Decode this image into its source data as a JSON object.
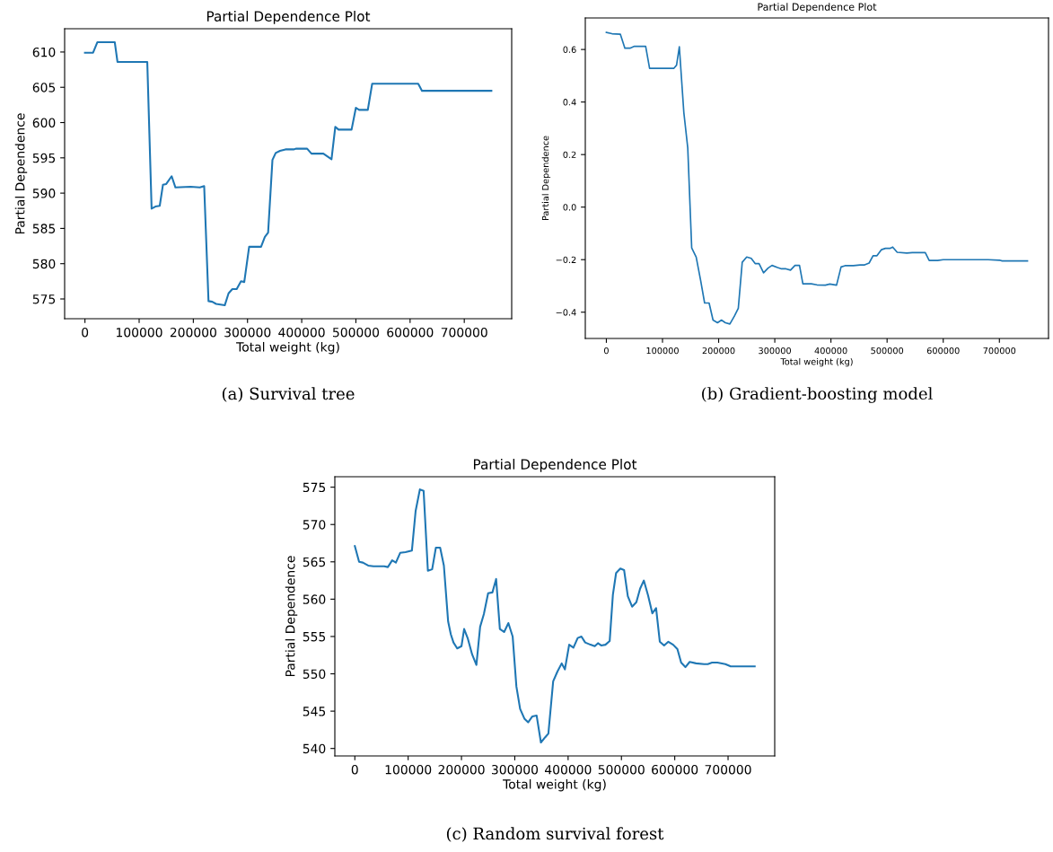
{
  "chart_data": [
    {
      "type": "line",
      "title": "Partial Dependence Plot",
      "xlabel": "Total weight (kg)",
      "ylabel": "Partial Dependence",
      "annotations": [
        "(a) Survival tree"
      ],
      "xlim": [
        -37500,
        787500
      ],
      "ylim": [
        572.2,
        613.3
      ],
      "xticks": [
        0,
        100000,
        200000,
        300000,
        400000,
        500000,
        600000,
        700000
      ],
      "yticks": [
        575,
        580,
        585,
        590,
        595,
        600,
        605,
        610
      ],
      "grid": false,
      "legend": false,
      "series": [
        {
          "color": "#1f77b4",
          "x": [
            0,
            15000,
            23000,
            55000,
            60000,
            115000,
            123000,
            130000,
            138000,
            144000,
            150000,
            160000,
            167000,
            195000,
            212000,
            220000,
            228000,
            235000,
            242000,
            258000,
            265000,
            272000,
            280000,
            288000,
            294000,
            303000,
            325000,
            332000,
            338000,
            346000,
            352000,
            360000,
            370000,
            385000,
            390000,
            410000,
            418000,
            440000,
            455000,
            462000,
            468000,
            492000,
            500000,
            506000,
            522000,
            530000,
            615000,
            622000,
            750000
          ],
          "values": [
            609.9,
            609.9,
            611.4,
            611.4,
            608.6,
            608.6,
            587.8,
            588.1,
            588.2,
            591.2,
            591.3,
            592.4,
            590.8,
            590.9,
            590.8,
            591.0,
            574.7,
            574.6,
            574.3,
            574.1,
            575.8,
            576.4,
            576.4,
            577.5,
            577.4,
            582.4,
            582.4,
            583.8,
            584.4,
            594.7,
            595.7,
            596.0,
            596.2,
            596.2,
            596.3,
            596.3,
            595.6,
            595.6,
            594.8,
            599.4,
            599.0,
            599.0,
            602.1,
            601.8,
            601.8,
            605.5,
            605.5,
            604.5,
            604.5
          ]
        }
      ]
    },
    {
      "type": "line",
      "title": "Partial Dependence Plot",
      "xlabel": "Total weight (kg)",
      "ylabel": "Partial Dependence",
      "annotations": [
        "(b) Gradient-boosting model"
      ],
      "xlim": [
        -37500,
        787500
      ],
      "ylim": [
        -0.5,
        0.72
      ],
      "xticks": [
        0,
        100000,
        200000,
        300000,
        400000,
        500000,
        600000,
        700000
      ],
      "yticks": [
        {
          "value": -0.4,
          "label": "−0.4"
        },
        {
          "value": -0.2,
          "label": "−0.2"
        },
        {
          "value": 0.0,
          "label": "0.0"
        },
        {
          "value": 0.2,
          "label": "0.2"
        },
        {
          "value": 0.4,
          "label": "0.4"
        },
        {
          "value": 0.6,
          "label": "0.6"
        }
      ],
      "grid": false,
      "legend": false,
      "series": [
        {
          "color": "#1f77b4",
          "x": [
            0,
            10000,
            25000,
            33000,
            42000,
            50000,
            70000,
            77000,
            120000,
            125000,
            130000,
            138000,
            145000,
            152000,
            160000,
            168000,
            175000,
            183000,
            190000,
            198000,
            205000,
            212000,
            220000,
            228000,
            235000,
            242000,
            250000,
            258000,
            265000,
            272000,
            280000,
            288000,
            295000,
            305000,
            312000,
            320000,
            328000,
            336000,
            344000,
            350000,
            365000,
            375000,
            390000,
            398000,
            410000,
            418000,
            425000,
            440000,
            452000,
            460000,
            468000,
            475000,
            482000,
            490000,
            497000,
            505000,
            510000,
            518000,
            535000,
            545000,
            568000,
            575000,
            590000,
            600000,
            620000,
            680000,
            700000,
            705000,
            750000
          ],
          "values": [
            0.665,
            0.66,
            0.658,
            0.605,
            0.605,
            0.612,
            0.612,
            0.528,
            0.528,
            0.54,
            0.61,
            0.36,
            0.225,
            -0.155,
            -0.19,
            -0.28,
            -0.365,
            -0.365,
            -0.43,
            -0.44,
            -0.43,
            -0.44,
            -0.445,
            -0.415,
            -0.385,
            -0.21,
            -0.19,
            -0.195,
            -0.215,
            -0.215,
            -0.25,
            -0.232,
            -0.222,
            -0.23,
            -0.235,
            -0.235,
            -0.24,
            -0.222,
            -0.222,
            -0.292,
            -0.292,
            -0.296,
            -0.297,
            -0.293,
            -0.297,
            -0.228,
            -0.223,
            -0.223,
            -0.22,
            -0.22,
            -0.213,
            -0.185,
            -0.185,
            -0.162,
            -0.157,
            -0.157,
            -0.152,
            -0.172,
            -0.175,
            -0.173,
            -0.173,
            -0.203,
            -0.203,
            -0.2,
            -0.2,
            -0.2,
            -0.202,
            -0.205,
            -0.205
          ]
        }
      ]
    },
    {
      "type": "line",
      "title": "Partial Dependence Plot",
      "xlabel": "Total weight (kg)",
      "ylabel": "Partial Dependence",
      "annotations": [
        "(c) Random survival forest"
      ],
      "xlim": [
        -37500,
        787500
      ],
      "ylim": [
        539.0,
        576.4
      ],
      "xticks": [
        0,
        100000,
        200000,
        300000,
        400000,
        500000,
        600000,
        700000
      ],
      "yticks": [
        540,
        545,
        550,
        555,
        560,
        565,
        570,
        575
      ],
      "grid": false,
      "legend": false,
      "series": [
        {
          "color": "#1f77b4",
          "x": [
            0,
            8000,
            15000,
            25000,
            35000,
            45000,
            55000,
            62000,
            70000,
            77000,
            85000,
            95000,
            107000,
            114000,
            122000,
            129000,
            137000,
            145000,
            152000,
            160000,
            167000,
            175000,
            180000,
            185000,
            192000,
            200000,
            205000,
            212000,
            220000,
            228000,
            235000,
            242000,
            250000,
            258000,
            265000,
            272000,
            280000,
            288000,
            296000,
            303000,
            310000,
            318000,
            325000,
            333000,
            341000,
            349000,
            357000,
            363000,
            372000,
            380000,
            388000,
            394000,
            402000,
            410000,
            418000,
            425000,
            432000,
            442000,
            450000,
            456000,
            462000,
            470000,
            478000,
            484000,
            490000,
            498000,
            505000,
            512000,
            520000,
            528000,
            535000,
            542000,
            550000,
            558000,
            565000,
            572000,
            580000,
            588000,
            597000,
            605000,
            612000,
            620000,
            628000,
            640000,
            655000,
            662000,
            670000,
            680000,
            695000,
            705000,
            720000,
            750000
          ],
          "values": [
            567.1,
            565.0,
            564.9,
            564.5,
            564.4,
            564.4,
            564.4,
            564.3,
            565.2,
            564.9,
            566.2,
            566.3,
            566.5,
            571.8,
            574.7,
            574.5,
            563.8,
            564.0,
            566.9,
            566.9,
            564.5,
            557.0,
            555.3,
            554.2,
            553.4,
            553.7,
            556.0,
            554.7,
            552.6,
            551.2,
            556.3,
            558.0,
            560.8,
            560.9,
            562.7,
            556.0,
            555.6,
            556.8,
            555.0,
            548.3,
            545.3,
            544.0,
            543.5,
            544.3,
            544.4,
            540.8,
            541.5,
            542.0,
            549.0,
            550.3,
            551.4,
            550.6,
            553.9,
            553.5,
            554.8,
            555.0,
            554.2,
            553.9,
            553.7,
            554.1,
            553.8,
            553.9,
            554.4,
            560.6,
            563.5,
            564.1,
            563.9,
            560.4,
            559.0,
            559.6,
            561.4,
            562.5,
            560.5,
            558.1,
            558.8,
            554.3,
            553.8,
            554.3,
            553.9,
            553.3,
            551.5,
            550.9,
            551.6,
            551.4,
            551.3,
            551.3,
            551.5,
            551.5,
            551.3,
            551.0,
            551.0,
            551.0
          ]
        }
      ]
    }
  ]
}
